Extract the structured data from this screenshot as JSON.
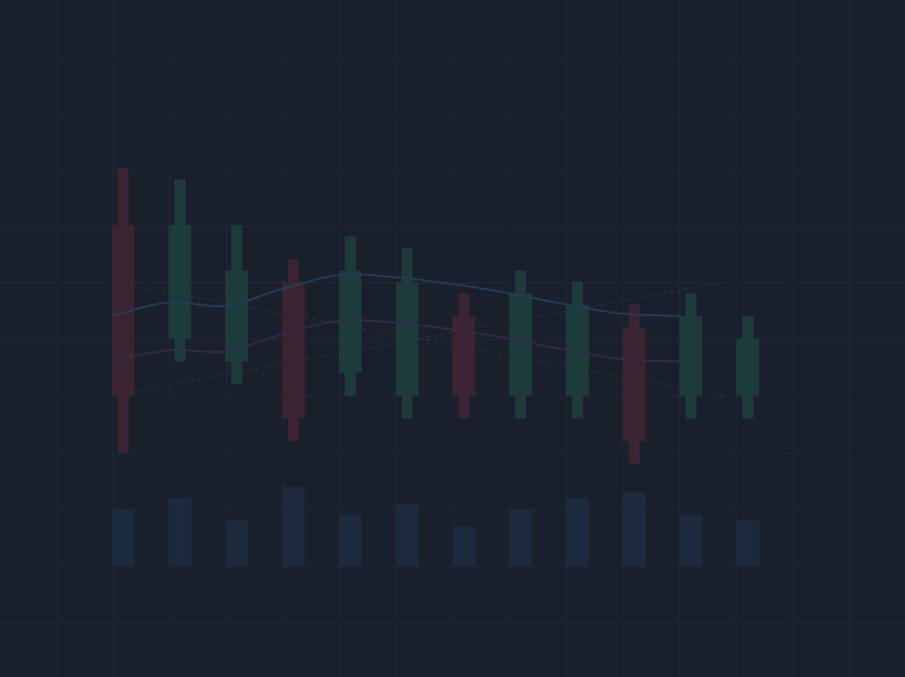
{
  "chart_data": {
    "type": "candlestick",
    "grid": true,
    "colors": {
      "background": "#1a1f2c",
      "grid": "#222838",
      "up": "#1e3b3b",
      "down": "#3a2431",
      "volume": "#1d2a3e",
      "ma_fast": "#223d57",
      "ma_slow": "#35294a",
      "trend": "#3a3142"
    },
    "candles": [
      {
        "open": 50,
        "close": 35,
        "high": 55,
        "low": 30
      },
      {
        "open": 40,
        "close": 50,
        "high": 54,
        "low": 38
      },
      {
        "open": 38,
        "close": 46,
        "high": 50,
        "low": 36
      },
      {
        "open": 45,
        "close": 33,
        "high": 47,
        "low": 31
      },
      {
        "open": 37,
        "close": 46,
        "high": 49,
        "low": 35
      },
      {
        "open": 35,
        "close": 45,
        "high": 48,
        "low": 33
      },
      {
        "open": 42,
        "close": 35,
        "high": 44,
        "low": 33
      },
      {
        "open": 35,
        "close": 44,
        "high": 46,
        "low": 33
      },
      {
        "open": 35,
        "close": 43,
        "high": 45,
        "low": 33
      },
      {
        "open": 41,
        "close": 31,
        "high": 43,
        "low": 29
      },
      {
        "open": 35,
        "close": 42,
        "high": 44,
        "low": 33
      },
      {
        "open": 35,
        "close": 40,
        "high": 42,
        "low": 33
      }
    ],
    "volume": [
      5,
      6,
      4,
      7,
      4.5,
      5.5,
      3.5,
      5,
      6,
      6.5,
      4.5,
      4
    ],
    "ma_fast": [
      42,
      43.2,
      42.9,
      44.4,
      45.6,
      45.4,
      44.8,
      44,
      43,
      42.2,
      42
    ],
    "ma_slow": [
      38,
      39,
      38.9,
      40.4,
      41.6,
      41.4,
      40.8,
      40,
      39,
      38.2,
      38
    ],
    "trend_lines": [
      {
        "from": 0,
        "to": 11,
        "start": 35,
        "end": 45
      },
      {
        "from": 0,
        "to": 11,
        "start": 45,
        "end": 35
      }
    ]
  }
}
